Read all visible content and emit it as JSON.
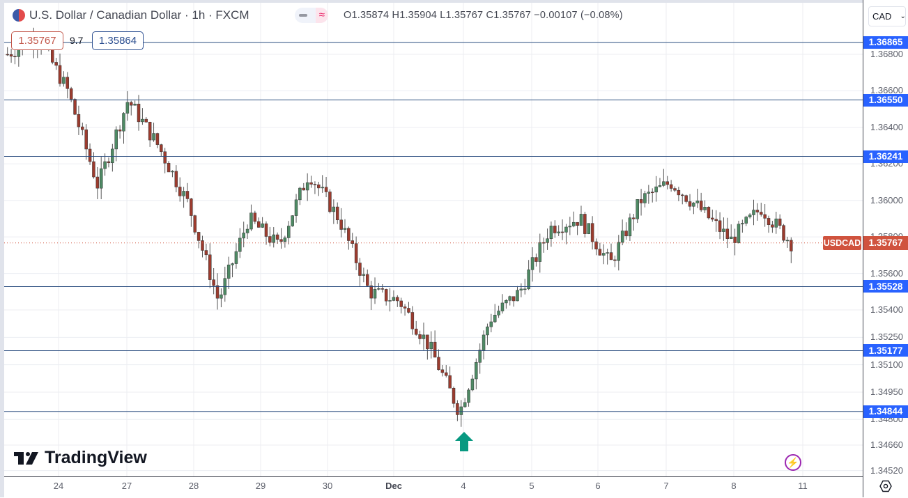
{
  "header": {
    "title": "U.S. Dollar / Canadian Dollar · 1h · FXCM",
    "ohlc": "O1.35874 H1.35904 L1.35767 C1.35767 −0.00107 (−0.08%)",
    "sell_price": "1.35767",
    "spread": "9.7",
    "buy_price": "1.35864",
    "currency_select": "CAD"
  },
  "colors": {
    "up_candle": "#4e8a64",
    "down_candle": "#9c3b2e",
    "level_line": "#2a4d7f",
    "level_label": "#2962ff",
    "current_price": "#d0533e",
    "arrow": "#089981",
    "event_icon": "#9c27b0"
  },
  "price_axis": {
    "ticks": [
      "1.36800",
      "1.36600",
      "1.36400",
      "1.36200",
      "1.36000",
      "1.35800",
      "1.35600",
      "1.35400",
      "1.35250",
      "1.35100",
      "1.34950",
      "1.34800",
      "1.34660",
      "1.34520"
    ],
    "current_symbol": "USDCAD",
    "current_price": "1.35767"
  },
  "time_axis": {
    "labels": [
      "24",
      "27",
      "28",
      "29",
      "30",
      "Dec",
      "4",
      "5",
      "6",
      "7",
      "8",
      "11"
    ]
  },
  "branding": {
    "logo_text": "TradingView"
  },
  "chart_data": {
    "type": "candlestick",
    "title": "U.S. Dollar / Canadian Dollar · 1h · FXCM",
    "symbol": "USDCAD",
    "interval": "1h",
    "ylabel": "CAD",
    "ylim": [
      1.3452,
      1.37
    ],
    "x_tick_labels": [
      "24",
      "27",
      "28",
      "29",
      "30",
      "Dec",
      "4",
      "5",
      "6",
      "7",
      "8",
      "11"
    ],
    "horizontal_levels": [
      1.36865,
      1.3655,
      1.36241,
      1.35528,
      1.35177,
      1.34844
    ],
    "last": {
      "open": 1.35874,
      "high": 1.35904,
      "low": 1.35767,
      "close": 1.35767,
      "change": -0.00107,
      "change_pct": -0.08
    },
    "annotations": [
      "Green up arrow at Dec 4 low near 1.34844",
      "Current price line 1.35767"
    ],
    "approx_path": [
      {
        "x": "24",
        "price": 1.368
      },
      {
        "x": "24.5",
        "price": 1.369
      },
      {
        "x": "25",
        "price": 1.366
      },
      {
        "x": "27",
        "price": 1.3608
      },
      {
        "x": "27.4",
        "price": 1.3655
      },
      {
        "x": "27.8",
        "price": 1.363
      },
      {
        "x": "28.5",
        "price": 1.3598
      },
      {
        "x": "29",
        "price": 1.3545
      },
      {
        "x": "29.5",
        "price": 1.359
      },
      {
        "x": "30",
        "price": 1.3575
      },
      {
        "x": "30.4",
        "price": 1.3615
      },
      {
        "x": "30.6",
        "price": 1.359
      },
      {
        "x": "Dec",
        "price": 1.355
      },
      {
        "x": "Dec.5",
        "price": 1.3545
      },
      {
        "x": "Dec.7",
        "price": 1.352
      },
      {
        "x": "4",
        "price": 1.3484
      },
      {
        "x": "4.5",
        "price": 1.3535
      },
      {
        "x": "5",
        "price": 1.355
      },
      {
        "x": "5.5",
        "price": 1.3585
      },
      {
        "x": "6",
        "price": 1.359
      },
      {
        "x": "6.5",
        "price": 1.3565
      },
      {
        "x": "7",
        "price": 1.36
      },
      {
        "x": "7.5",
        "price": 1.361
      },
      {
        "x": "8",
        "price": 1.3595
      },
      {
        "x": "8.3",
        "price": 1.3578
      },
      {
        "x": "8.7",
        "price": 1.3596
      },
      {
        "x": "8.9",
        "price": 1.35767
      }
    ]
  }
}
